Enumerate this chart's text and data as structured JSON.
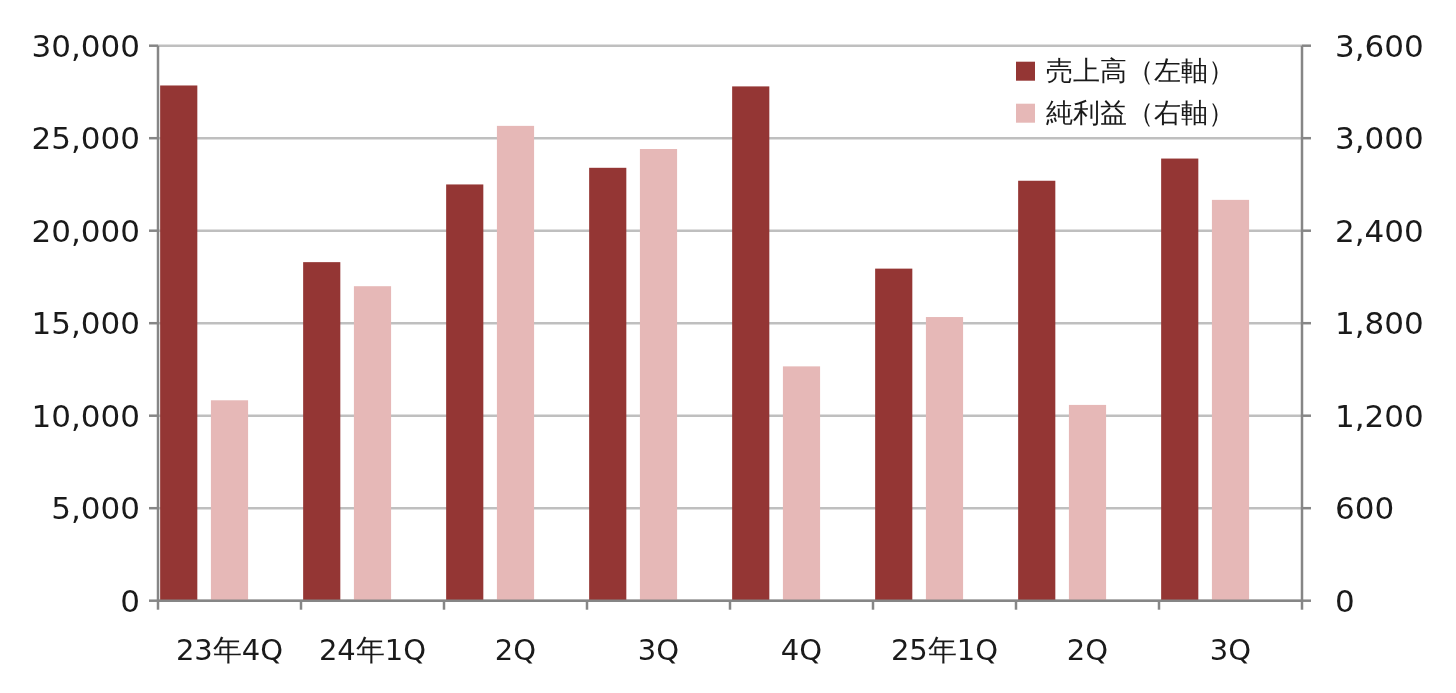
{
  "chart_data": {
    "type": "bar",
    "categories": [
      "23年4Q",
      "24年1Q",
      "2Q",
      "3Q",
      "4Q",
      "25年1Q",
      "2Q",
      "3Q"
    ],
    "series": [
      {
        "name": "売上高（左軸）",
        "color": "#943634",
        "values": [
          27850,
          18300,
          22500,
          23400,
          27800,
          17950,
          22700,
          23900
        ]
      },
      {
        "name": "純利益（右軸）",
        "color": "#e6b8b7",
        "axis": "y2",
        "values": [
          1300,
          2040,
          3080,
          2930,
          1520,
          1840,
          1270,
          2600
        ]
      }
    ],
    "ylim": [
      0,
      30000
    ],
    "yticks": [
      0,
      {
        "value": 5000,
        "label": "5,000"
      },
      {
        "value": 10000,
        "label": "10,000"
      },
      {
        "value": 15000,
        "label": "15,000"
      },
      {
        "value": 20000,
        "label": "20,000"
      },
      {
        "value": 25000,
        "label": "25,000"
      },
      {
        "value": 30000,
        "label": "30,000"
      }
    ],
    "y2lim": [
      0,
      3600
    ],
    "y2ticks": [
      0,
      600,
      {
        "value": 1200,
        "label": "1,200"
      },
      {
        "value": 1800,
        "label": "1,800"
      },
      {
        "value": 2400,
        "label": "2,400"
      },
      {
        "value": 3000,
        "label": "3,000"
      },
      {
        "value": 3600,
        "label": "3,600"
      }
    ],
    "grid": "y",
    "legend": "top right"
  }
}
